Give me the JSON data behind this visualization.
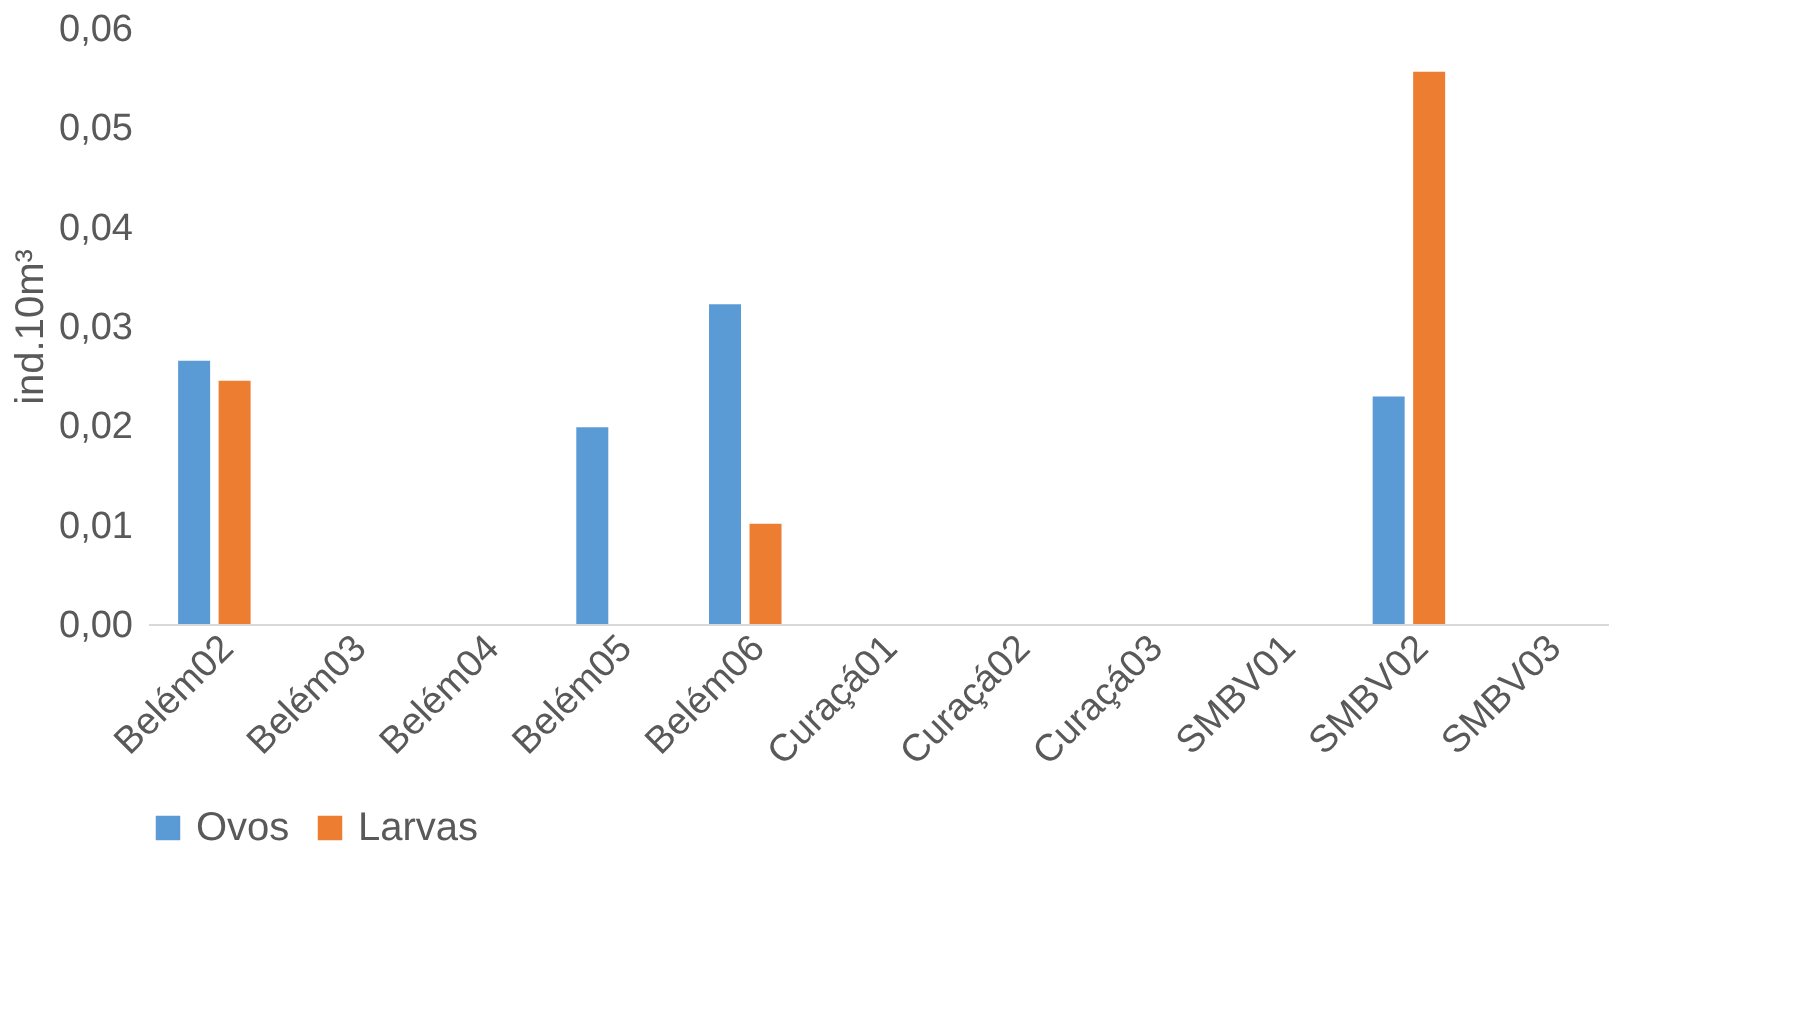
{
  "chart_data": {
    "type": "bar",
    "ylabel": "ind.10m³",
    "categories": [
      "Belém02",
      "Belém03",
      "Belém04",
      "Belém05",
      "Belém06",
      "Curaçá01",
      "Curaçá02",
      "Curaçá03",
      "SMBV01",
      "SMBV02",
      "SMBV03"
    ],
    "series": [
      {
        "name": "Ovos",
        "color": "#5b9bd5",
        "values": [
          0.0265,
          0,
          0,
          0.0198,
          0.0322,
          0,
          0,
          0,
          0,
          0.0229,
          0
        ]
      },
      {
        "name": "Larvas",
        "color": "#ed7d31",
        "values": [
          0.0245,
          0,
          0,
          0,
          0.0101,
          0,
          0,
          0,
          0,
          0.0556,
          0
        ]
      }
    ],
    "ylim": [
      0,
      0.06
    ],
    "yticks": [
      {
        "value": 0,
        "label": "0,00"
      },
      {
        "value": 0.01,
        "label": "0,01"
      },
      {
        "value": 0.02,
        "label": "0,02"
      },
      {
        "value": 0.03,
        "label": "0,03"
      },
      {
        "value": 0.04,
        "label": "0,04"
      },
      {
        "value": 0.05,
        "label": "0,05"
      },
      {
        "value": 0.06,
        "label": "0,06"
      }
    ],
    "grid": false,
    "legend": "bottom"
  }
}
